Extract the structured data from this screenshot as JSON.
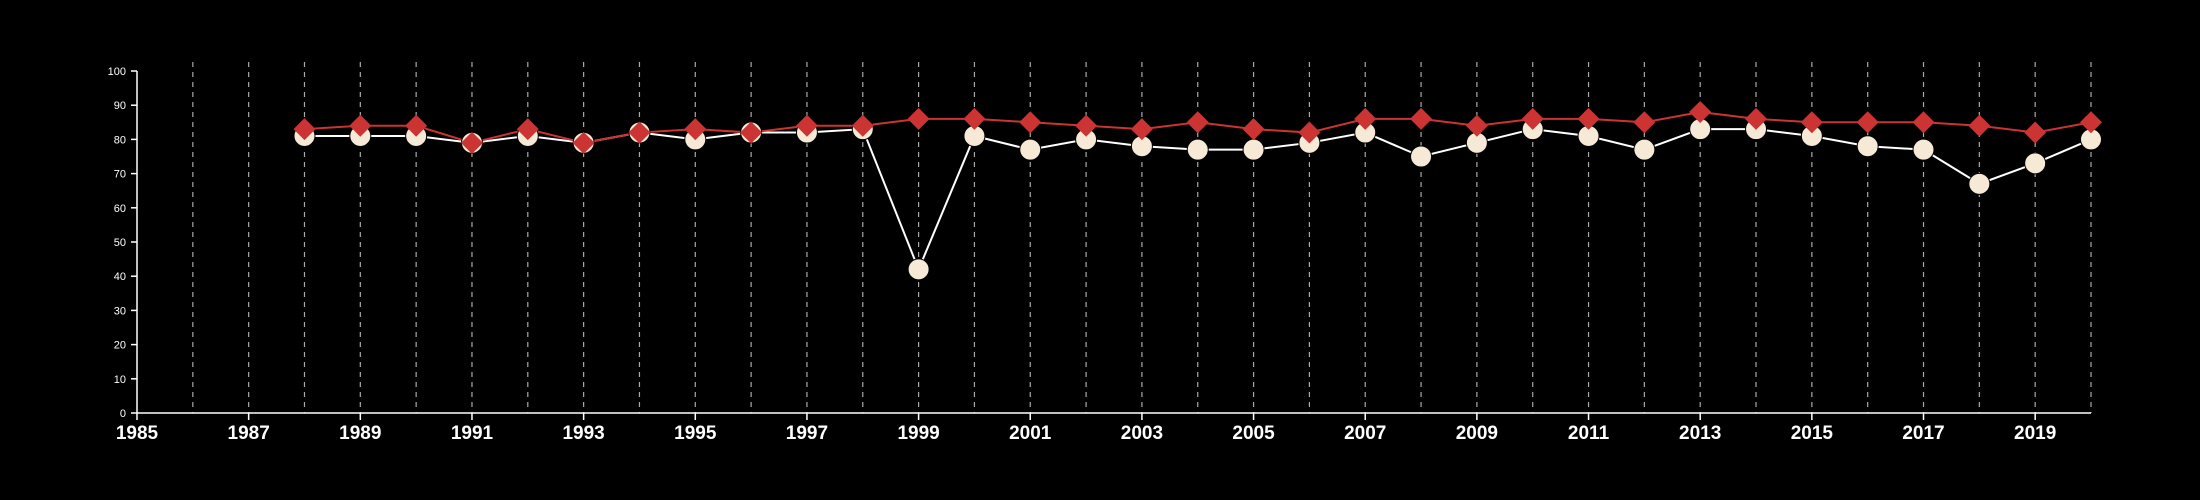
{
  "chart_data": {
    "type": "line",
    "title": "",
    "xlabel": "",
    "ylabel": "",
    "xlim": [
      1985,
      2020
    ],
    "ylim": [
      0,
      100
    ],
    "x_ticks": [
      "1985",
      "1987",
      "1989",
      "1991",
      "1993",
      "1995",
      "1997",
      "1999",
      "2001",
      "2003",
      "2005",
      "2007",
      "2009",
      "2011",
      "2013",
      "2015",
      "2017",
      "2019"
    ],
    "y_ticks": [
      "0",
      "10",
      "20",
      "30",
      "40",
      "50",
      "60",
      "70",
      "80",
      "90",
      "100"
    ],
    "grid": "vertical dashed at every year",
    "legend": "none",
    "x": [
      1988,
      1989,
      1990,
      1991,
      1992,
      1993,
      1994,
      1995,
      1996,
      1997,
      1998,
      1999,
      2000,
      2001,
      2002,
      2003,
      2004,
      2005,
      2006,
      2007,
      2008,
      2009,
      2010,
      2011,
      2012,
      2013,
      2014,
      2015,
      2016,
      2017,
      2018,
      2019,
      2020
    ],
    "series": [
      {
        "marker": "circle",
        "color": "#f6e9d6",
        "values": [
          81,
          81,
          81,
          79,
          81,
          79,
          82,
          80,
          82,
          82,
          83,
          42,
          81,
          77,
          80,
          78,
          77,
          77,
          79,
          82,
          75,
          79,
          83,
          81,
          77,
          83,
          83,
          81,
          78,
          77,
          67,
          73,
          80
        ]
      },
      {
        "marker": "diamond",
        "color": "#cc3333",
        "values": [
          83,
          84,
          84,
          79,
          83,
          79,
          82,
          83,
          82,
          84,
          84,
          86,
          86,
          85,
          84,
          83,
          85,
          83,
          82,
          86,
          86,
          84,
          86,
          86,
          85,
          88,
          86,
          85,
          85,
          85,
          84,
          82,
          85
        ]
      }
    ]
  },
  "colors": {
    "background": "#000000",
    "axis": "#ffffff",
    "grid": "#aaaaaa",
    "line_light": "#ffffff",
    "line_red": "#cc3333",
    "marker_light": "#f6e9d6",
    "marker_red": "#cc3333"
  }
}
